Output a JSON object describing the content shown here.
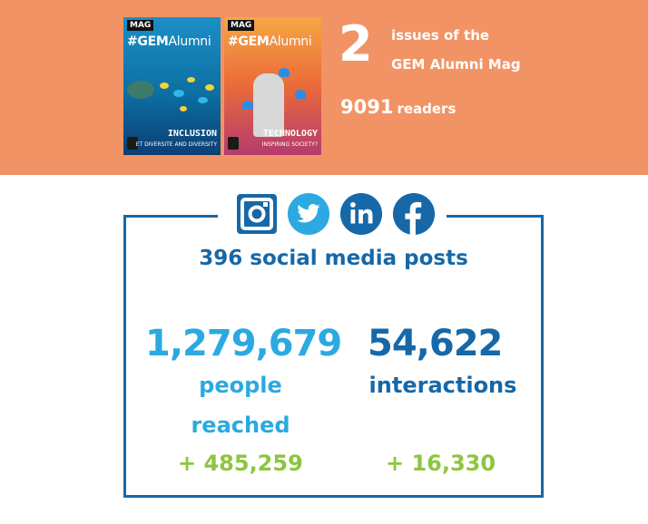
{
  "magazine": {
    "covers": [
      {
        "mag": "MAG",
        "brand": "#GEM",
        "brand_thin": "Alumni",
        "theme": "INCLUSION",
        "subtitle": "ET DIVERSITE AND DIVERSITY"
      },
      {
        "mag": "MAG",
        "brand": "#GEM",
        "brand_thin": "Alumni",
        "theme": "TECHNOLOGY",
        "subtitle": "INSPIRING SOCIETY?"
      }
    ],
    "issues_count": "2",
    "issues_line1": "issues of the",
    "issues_line2": "GEM Alumni Mag",
    "readers_count": "9091",
    "readers_label": "readers"
  },
  "social": {
    "icons": [
      "instagram-icon",
      "twitter-icon",
      "linkedin-icon",
      "facebook-icon"
    ],
    "posts": "396 social media posts",
    "reached_count": "1,279,679",
    "reached_label_1": "people",
    "reached_label_2": "reached",
    "reached_growth": "+ 485,259",
    "interactions_count": "54,622",
    "interactions_label": "interactions",
    "interactions_growth": "+ 16,330"
  },
  "colors": {
    "band": "#F29365",
    "dark_blue": "#1668A8",
    "light_blue": "#2BA9E0",
    "green": "#8CC63F"
  }
}
